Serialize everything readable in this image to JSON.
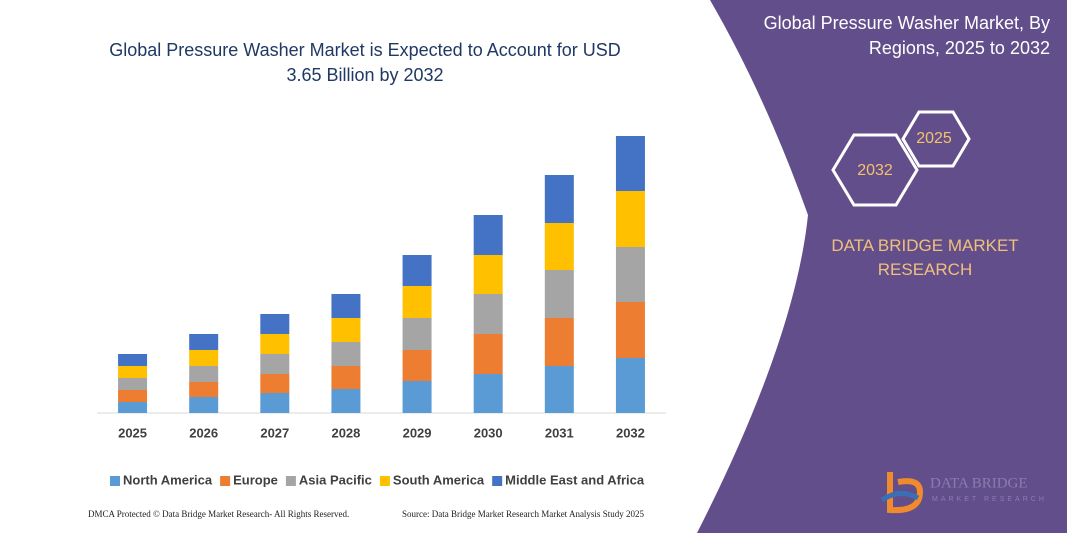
{
  "chart_data": {
    "type": "stacked_bar",
    "title": "Global Pressure Washer Market is Expected to Account for USD 3.65 Billion by 2032",
    "categories": [
      "2025",
      "2026",
      "2027",
      "2028",
      "2029",
      "2030",
      "2031",
      "2032"
    ],
    "series": [
      {
        "name": "North America",
        "color": "#5b9bd5",
        "values": [
          11,
          16,
          20,
          24,
          32,
          39,
          47,
          55
        ]
      },
      {
        "name": "Europe",
        "color": "#ed7d31",
        "values": [
          12,
          15,
          19,
          23,
          31,
          40,
          48,
          56
        ]
      },
      {
        "name": "Asia Pacific",
        "color": "#a5a5a5",
        "values": [
          12,
          16,
          20,
          24,
          32,
          40,
          48,
          55
        ]
      },
      {
        "name": "South America",
        "color": "#ffc000",
        "values": [
          12,
          16,
          20,
          24,
          32,
          39,
          47,
          56
        ]
      },
      {
        "name": "Middle East and Africa",
        "color": "#4472c4",
        "values": [
          12,
          16,
          20,
          24,
          31,
          40,
          48,
          55
        ]
      }
    ],
    "ylim": [
      0,
      277
    ],
    "legend": "bottom"
  },
  "panel": {
    "title": "Global Pressure Washer Market, By Regions, 2025 to 2032",
    "hexagons": [
      "2025",
      "2032"
    ],
    "brand": "DATA BRIDGE MARKET RESEARCH"
  },
  "logo": {
    "name": "DATA BRIDGE",
    "tagline": "MARKET RESEARCH"
  },
  "footer": {
    "left": "DMCA Protected © Data Bridge Market Research- All Rights Reserved.",
    "right": "Source: Data Bridge Market Research Market Analysis Study 2025"
  }
}
